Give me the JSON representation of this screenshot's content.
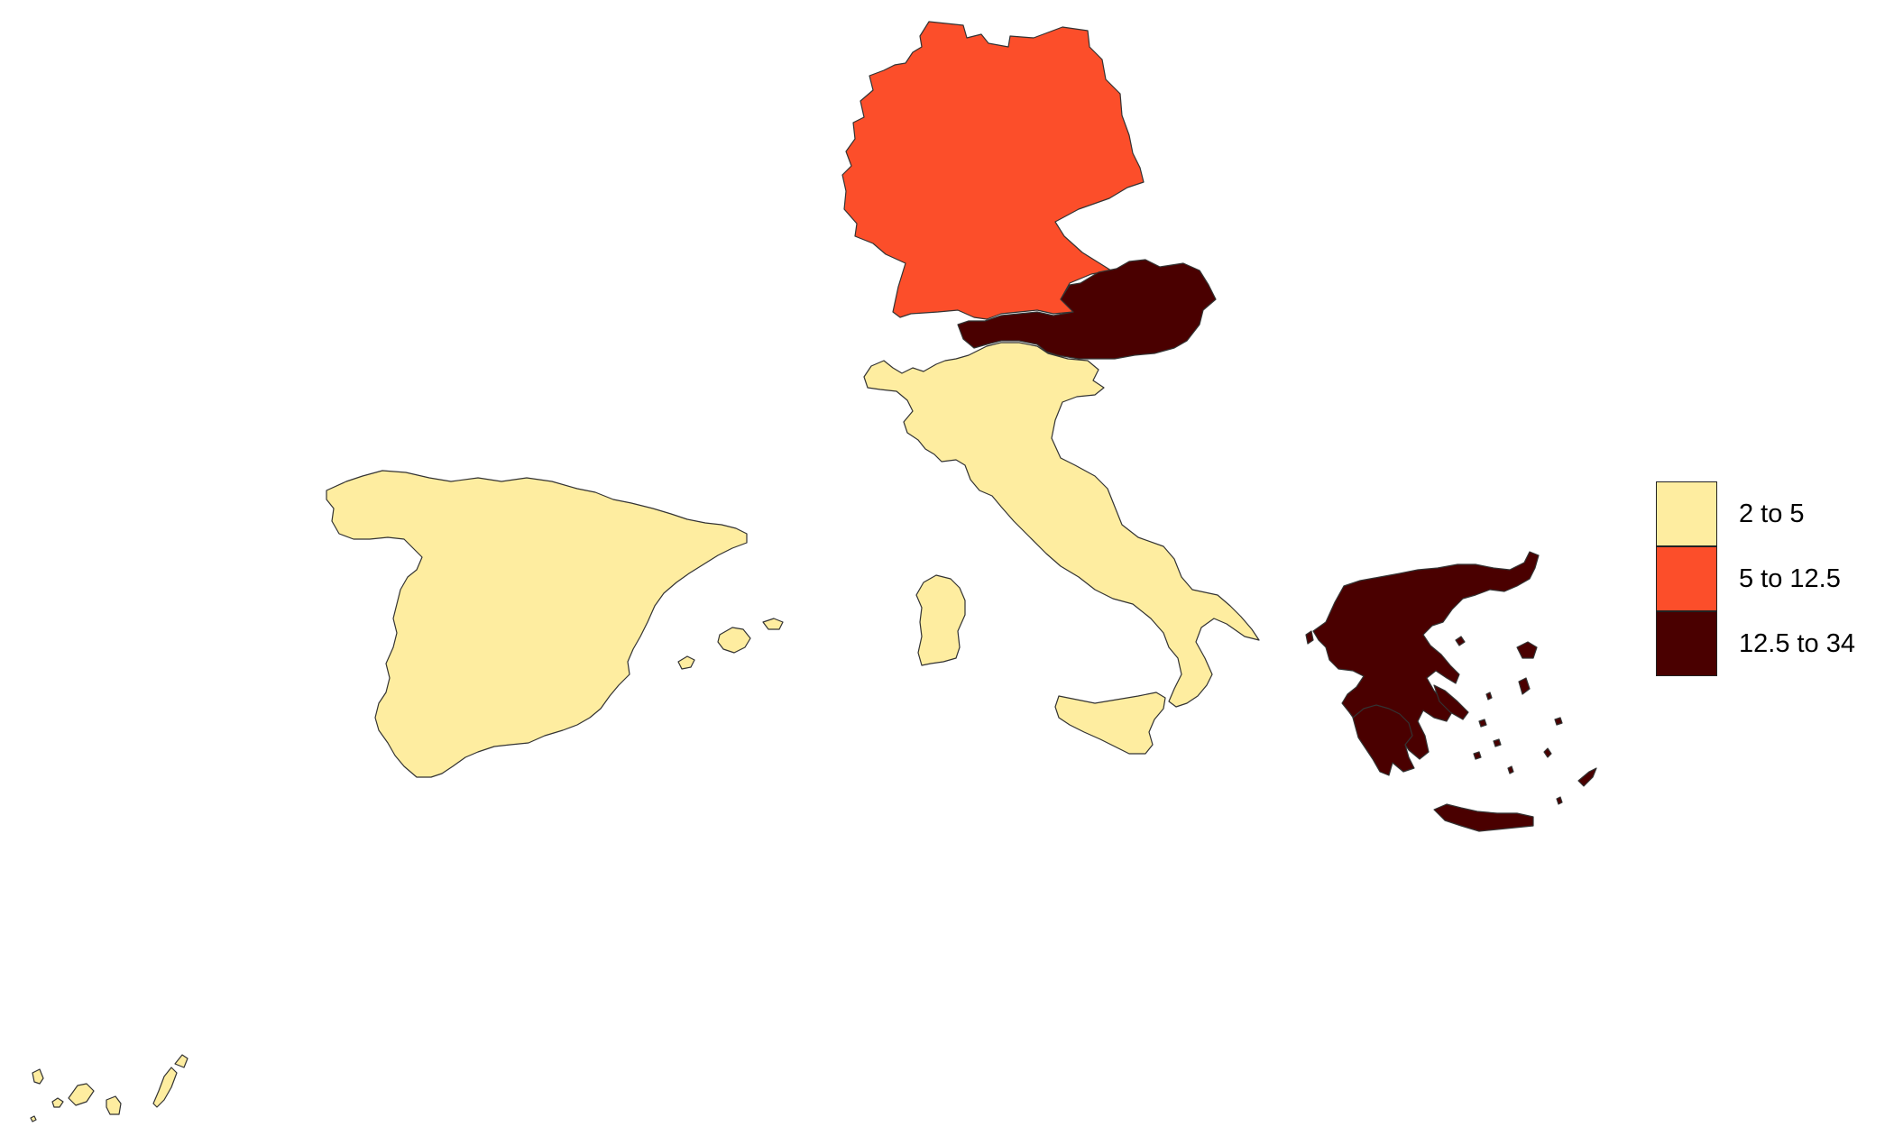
{
  "map": {
    "colors": {
      "low": "#FEEDA0",
      "mid": "#FC4E2A",
      "high": "#4A0000",
      "border": "#333333"
    },
    "regions": [
      {
        "id": "germany",
        "bin": "mid"
      },
      {
        "id": "austria",
        "bin": "high"
      },
      {
        "id": "italy",
        "bin": "low"
      },
      {
        "id": "spain",
        "bin": "low"
      },
      {
        "id": "greece",
        "bin": "high"
      }
    ],
    "legend": {
      "items": [
        {
          "label": "2 to 5",
          "color": "#FEEDA0"
        },
        {
          "label": "5 to 12.5",
          "color": "#FC4E2A"
        },
        {
          "label": "12.5 to 34",
          "color": "#4A0000"
        }
      ]
    }
  }
}
